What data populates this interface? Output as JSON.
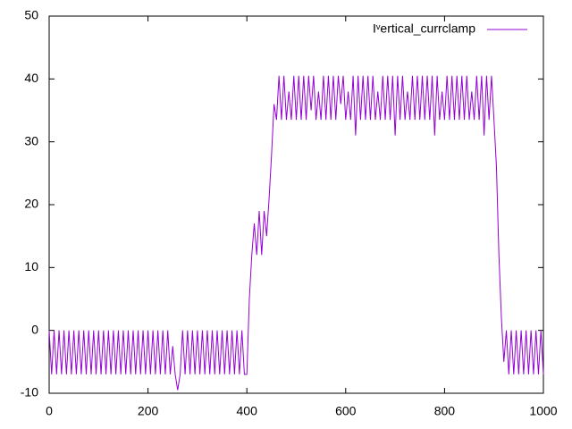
{
  "chart_data": {
    "type": "line",
    "xlim": [
      0,
      1000
    ],
    "xticks": [
      0,
      200,
      400,
      600,
      800,
      1000
    ],
    "ylim": [
      -10,
      50
    ],
    "yticks": [
      -10,
      0,
      10,
      20,
      30,
      40,
      50
    ],
    "legend": "top-right",
    "x": [
      0,
      5,
      10,
      15,
      20,
      25,
      30,
      35,
      40,
      45,
      50,
      55,
      60,
      65,
      70,
      75,
      80,
      85,
      90,
      95,
      100,
      105,
      110,
      115,
      120,
      125,
      130,
      135,
      140,
      145,
      150,
      155,
      160,
      165,
      170,
      175,
      180,
      185,
      190,
      195,
      200,
      205,
      210,
      215,
      220,
      225,
      230,
      235,
      240,
      245,
      250,
      255,
      260,
      265,
      270,
      275,
      280,
      285,
      290,
      295,
      300,
      305,
      310,
      315,
      320,
      325,
      330,
      335,
      340,
      345,
      350,
      355,
      360,
      365,
      370,
      375,
      380,
      385,
      390,
      395,
      400,
      405,
      410,
      415,
      420,
      425,
      430,
      435,
      440,
      445,
      450,
      455,
      460,
      465,
      470,
      475,
      480,
      485,
      490,
      495,
      500,
      505,
      510,
      515,
      520,
      525,
      530,
      535,
      540,
      545,
      550,
      555,
      560,
      565,
      570,
      575,
      580,
      585,
      590,
      595,
      600,
      605,
      610,
      615,
      620,
      625,
      630,
      635,
      640,
      645,
      650,
      655,
      660,
      665,
      670,
      675,
      680,
      685,
      690,
      695,
      700,
      705,
      710,
      715,
      720,
      725,
      730,
      735,
      740,
      745,
      750,
      755,
      760,
      765,
      770,
      775,
      780,
      785,
      790,
      795,
      800,
      805,
      810,
      815,
      820,
      825,
      830,
      835,
      840,
      845,
      850,
      855,
      860,
      865,
      870,
      875,
      880,
      885,
      890,
      895,
      900,
      905,
      910,
      915,
      920,
      925,
      930,
      935,
      940,
      945,
      950,
      955,
      960,
      965,
      970,
      975,
      980,
      985,
      990,
      995,
      1000
    ],
    "series": [
      {
        "name": "Iᵛertical_currclamp",
        "color": "#9400d3",
        "values": [
          0,
          -7,
          0,
          -7,
          0,
          -7,
          0,
          -7,
          0,
          -7,
          0,
          -7,
          0,
          -7,
          0,
          -7,
          0,
          -7,
          0,
          -7,
          0,
          -7,
          0,
          -7,
          0,
          -7,
          0,
          -7,
          0,
          -7,
          0,
          -7,
          0,
          -7,
          0,
          -7,
          0,
          -7,
          0,
          -7,
          0,
          -7,
          0,
          -7,
          0,
          -7,
          0,
          -7,
          0,
          -7,
          -2.5,
          -7,
          -9.5,
          -7,
          0,
          -7,
          0,
          -7,
          0,
          -7,
          0,
          -7,
          0,
          -7,
          0,
          -7,
          0,
          -7,
          0,
          -7,
          0,
          -7,
          0,
          -7,
          0,
          -7,
          0,
          -7,
          0,
          -7,
          -7,
          5,
          12,
          17,
          12,
          19,
          12,
          19,
          15,
          21,
          28,
          36,
          33.5,
          40.5,
          33.5,
          40.5,
          33.5,
          38,
          33.5,
          40.5,
          33.5,
          40.5,
          33.5,
          40.5,
          33.5,
          40.5,
          35,
          40.5,
          33.5,
          38,
          33.5,
          40.5,
          33.5,
          40.5,
          33.5,
          40.5,
          33.5,
          40.5,
          36,
          40.5,
          33.5,
          38,
          33.5,
          40.5,
          31,
          40.5,
          33.5,
          40.5,
          33.5,
          40.5,
          33.5,
          40.5,
          33.5,
          38,
          33.5,
          40.5,
          33.5,
          40.5,
          33.5,
          40.5,
          31,
          40.5,
          33.5,
          40.5,
          33.5,
          38,
          33.5,
          40.5,
          33.5,
          40.5,
          33.5,
          40.5,
          33.5,
          40.5,
          33.5,
          40.5,
          31,
          40.5,
          33.5,
          38,
          33.5,
          40.5,
          33.5,
          40.5,
          33.5,
          40.5,
          33.5,
          40.5,
          33.5,
          40.5,
          33.5,
          38,
          33.5,
          40.5,
          33.5,
          40.5,
          31,
          40.5,
          33.5,
          40.5,
          33.5,
          26,
          12,
          2,
          -5,
          0,
          -7,
          0,
          -7,
          0,
          -7,
          0,
          -7,
          0,
          -7,
          0,
          -7,
          0,
          -7,
          0,
          -7
        ]
      }
    ]
  }
}
